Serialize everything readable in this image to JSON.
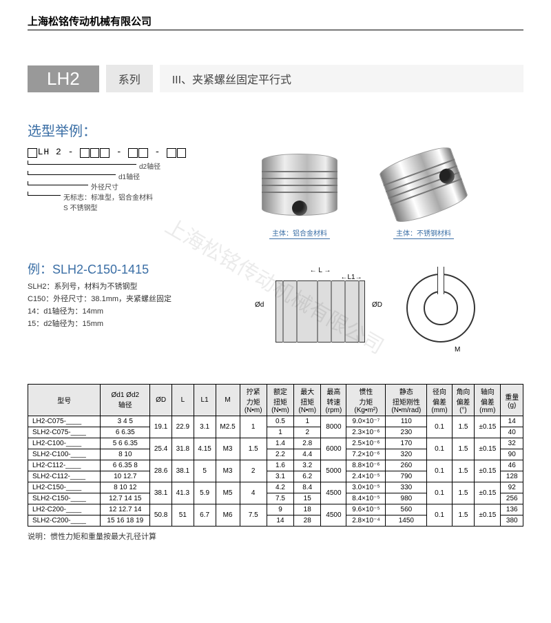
{
  "company": "上海松铭传动机械有限公司",
  "series": {
    "code": "LH2",
    "label": "系列",
    "desc": "III、夹紧螺丝固定平行式"
  },
  "selection_title": "选型举例：",
  "code_template": {
    "boxes": [
      "",
      "LH",
      "2",
      "-",
      "",
      "",
      "",
      "-",
      "",
      "",
      "-",
      "",
      ""
    ],
    "labels": [
      "d2轴径",
      "d1轴径",
      "外径尺寸",
      "无标志：标准型，铝合金材料",
      "S 不锈钢型"
    ]
  },
  "product_captions": {
    "left": "主体：铝合金材料",
    "right": "主体：不锈钢材料"
  },
  "example": {
    "title": "例：SLH2-C150-1415",
    "lines": [
      "SLH2：系列号，材料为不锈钢型",
      "C150：外径尺寸：38.1mm，夹紧螺丝固定",
      "14：d1轴径为：14mm",
      "15：d2轴径为：15mm"
    ]
  },
  "dim_labels": {
    "L": "L",
    "L1": "L1",
    "M": "M",
    "od": "Ød",
    "OD": "ØD"
  },
  "table": {
    "headers": [
      "型号",
      "Ød1 Ød2\n轴径",
      "ØD",
      "L",
      "L1",
      "M",
      "拧紧\n力矩\n(N•m)",
      "额定\n扭矩\n(N•m)",
      "最大\n扭矩\n(N•m)",
      "最高\n转速\n(rpm)",
      "惯性\n力矩\n(Kg•m²)",
      "静态\n扭矩刚性\n(N•m/rad)",
      "径向\n偏差\n(mm)",
      "角向\n偏差\n(°)",
      "轴向\n偏差\n(mm)",
      "重量\n(g)"
    ],
    "groups": [
      {
        "rows": [
          {
            "model": "LH2-C075-____",
            "shaft": "3 4 5",
            "ed": "0.5",
            "md": "1",
            "inertia": "9.0×10⁻⁷",
            "rigid": "110",
            "wt": "14"
          },
          {
            "model": "SLH2-C075-____",
            "shaft": "6 6.35",
            "ed": "1",
            "md": "2",
            "inertia": "2.3×10⁻⁶",
            "rigid": "230",
            "wt": "40"
          }
        ],
        "common": {
          "OD": "19.1",
          "L": "22.9",
          "L1": "3.1",
          "M": "M2.5",
          "tt": "1",
          "rpm": "8000",
          "rad": "0.1",
          "ang": "1.5",
          "ax": "±0.15"
        }
      },
      {
        "rows": [
          {
            "model": "LH2-C100-____",
            "shaft": "5 6 6.35",
            "ed": "1.4",
            "md": "2.8",
            "inertia": "2.5×10⁻⁶",
            "rigid": "170",
            "wt": "32"
          },
          {
            "model": "SLH2-C100-____",
            "shaft": "8 10",
            "ed": "2.2",
            "md": "4.4",
            "inertia": "7.2×10⁻⁶",
            "rigid": "320",
            "wt": "90"
          }
        ],
        "common": {
          "OD": "25.4",
          "L": "31.8",
          "L1": "4.15",
          "M": "M3",
          "tt": "1.5",
          "rpm": "6000",
          "rad": "0.1",
          "ang": "1.5",
          "ax": "±0.15"
        }
      },
      {
        "rows": [
          {
            "model": "LH2-C112-____",
            "shaft": "6 6.35 8",
            "ed": "1.6",
            "md": "3.2",
            "inertia": "8.8×10⁻⁶",
            "rigid": "260",
            "wt": "46"
          },
          {
            "model": "SLH2-C112-____",
            "shaft": "10 12.7",
            "ed": "3.1",
            "md": "6.2",
            "inertia": "2.4×10⁻⁵",
            "rigid": "790",
            "wt": "128"
          }
        ],
        "common": {
          "OD": "28.6",
          "L": "38.1",
          "L1": "5",
          "M": "M3",
          "tt": "2",
          "rpm": "5000",
          "rad": "0.1",
          "ang": "1.5",
          "ax": "±0.15"
        }
      },
      {
        "rows": [
          {
            "model": "LH2-C150-____",
            "shaft": "8 10 12",
            "ed": "4.2",
            "md": "8.4",
            "inertia": "3.0×10⁻⁵",
            "rigid": "330",
            "wt": "92"
          },
          {
            "model": "SLH2-C150-____",
            "shaft": "12.7 14 15",
            "ed": "7.5",
            "md": "15",
            "inertia": "8.4×10⁻⁵",
            "rigid": "980",
            "wt": "256"
          }
        ],
        "common": {
          "OD": "38.1",
          "L": "41.3",
          "L1": "5.9",
          "M": "M5",
          "tt": "4",
          "rpm": "4500",
          "rad": "0.1",
          "ang": "1.5",
          "ax": "±0.15"
        }
      },
      {
        "rows": [
          {
            "model": "LH2-C200-____",
            "shaft": "12 12.7 14",
            "ed": "9",
            "md": "18",
            "inertia": "9.6×10⁻⁵",
            "rigid": "560",
            "wt": "136"
          },
          {
            "model": "SLH2-C200-____",
            "shaft": "15 16 18 19",
            "ed": "14",
            "md": "28",
            "inertia": "2.8×10⁻⁴",
            "rigid": "1450",
            "wt": "380"
          }
        ],
        "common": {
          "OD": "50.8",
          "L": "51",
          "L1": "6.7",
          "M": "M6",
          "tt": "7.5",
          "rpm": "4500",
          "rad": "0.1",
          "ang": "1.5",
          "ax": "±0.15"
        }
      }
    ]
  },
  "footnote": "说明：惯性力矩和重量按最大孔径计算",
  "watermark": "上海松铭传动机械有限公司"
}
